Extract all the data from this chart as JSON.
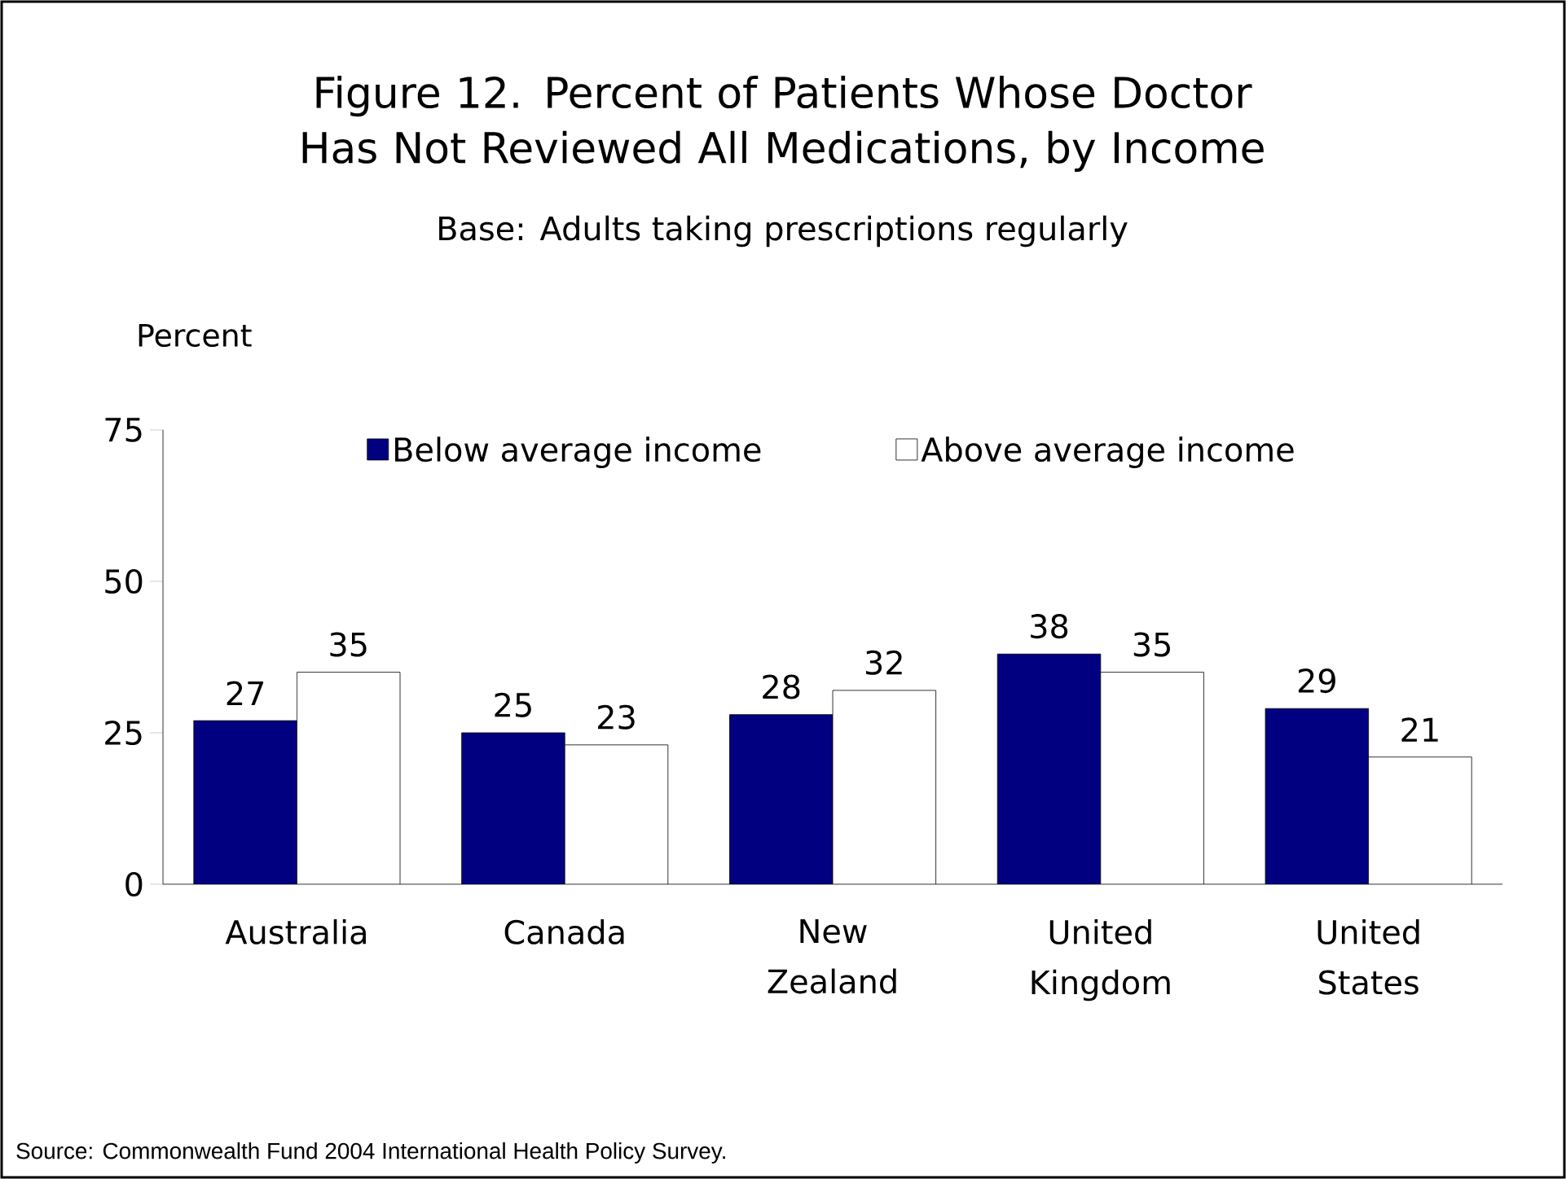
{
  "chart_data": {
    "type": "bar",
    "title": "Figure 12. Percent of Patients Whose Doctor Has Not Reviewed All Medications, by Income",
    "subtitle": "Base: Adults taking prescriptions regularly",
    "ylabel": "Percent",
    "categories": [
      "Australia",
      "Canada",
      "New Zealand",
      "United Kingdom",
      "United States"
    ],
    "series": [
      {
        "name": "Below average income",
        "color": "#000080",
        "values": [
          27,
          25,
          28,
          38,
          29
        ]
      },
      {
        "name": "Above average income",
        "color": "#ffffff",
        "values": [
          35,
          23,
          32,
          35,
          21
        ]
      }
    ],
    "ylim": [
      0,
      75
    ],
    "yticks": [
      0,
      25,
      50,
      75
    ],
    "grid": false,
    "legend": "top",
    "data_labels": true,
    "annotations": [
      "Source: Commonwealth Fund 2004 International Health Policy Survey."
    ]
  }
}
